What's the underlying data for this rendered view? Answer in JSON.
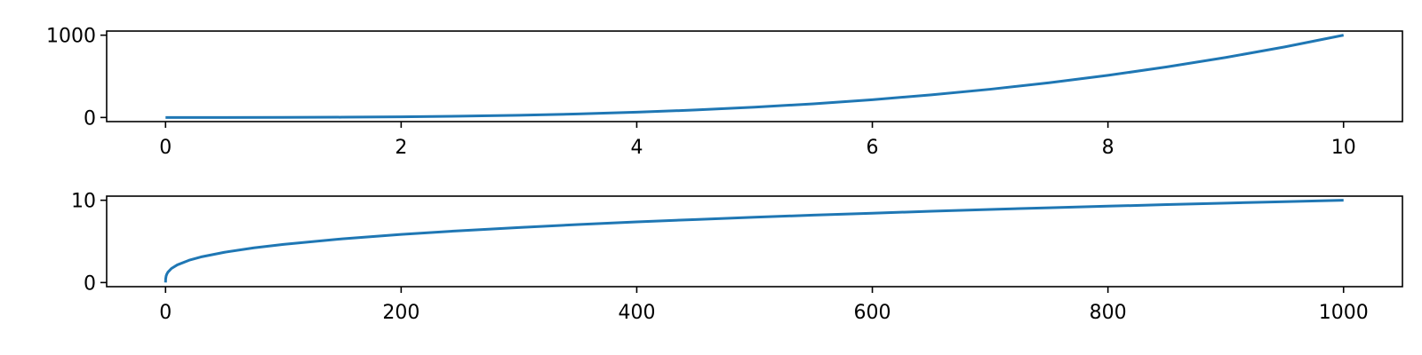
{
  "chart_data": [
    {
      "type": "line",
      "title": "",
      "xlabel": "",
      "ylabel": "",
      "xlim": [
        -0.5,
        10.5
      ],
      "ylim": [
        -50,
        1050
      ],
      "xticks": [
        0,
        2,
        4,
        6,
        8,
        10
      ],
      "yticks": [
        0,
        1000
      ],
      "xtick_labels": [
        "0",
        "2",
        "4",
        "6",
        "8",
        "10"
      ],
      "ytick_labels": [
        "0",
        "1000"
      ],
      "grid": false,
      "series": [
        {
          "color": "#1f77b4",
          "x": [
            0,
            0.5,
            1,
            1.5,
            2,
            2.5,
            3,
            3.5,
            4,
            4.5,
            5,
            5.5,
            6,
            6.5,
            7,
            7.5,
            8,
            8.5,
            9,
            9.5,
            10
          ],
          "y": [
            0,
            0.125,
            1,
            3.375,
            8,
            15.625,
            27,
            42.875,
            64,
            91.125,
            125,
            166.375,
            216,
            274.625,
            343,
            421.875,
            512,
            614.125,
            729,
            857.375,
            1000
          ]
        }
      ]
    },
    {
      "type": "line",
      "title": "",
      "xlabel": "",
      "ylabel": "",
      "xlim": [
        -50,
        1050
      ],
      "ylim": [
        -0.5,
        10.5
      ],
      "xticks": [
        0,
        200,
        400,
        600,
        800,
        1000
      ],
      "yticks": [
        0,
        10
      ],
      "xtick_labels": [
        "0",
        "200",
        "400",
        "600",
        "800",
        "1000"
      ],
      "ytick_labels": [
        "0",
        "10"
      ],
      "grid": false,
      "series": [
        {
          "color": "#1f77b4",
          "x": [
            0,
            0.1,
            0.5,
            1,
            2,
            5,
            10,
            20,
            30,
            50,
            75,
            100,
            150,
            200,
            250,
            300,
            350,
            400,
            450,
            500,
            550,
            600,
            650,
            700,
            750,
            800,
            850,
            900,
            950,
            1000
          ],
          "y": [
            0,
            0.46,
            0.79,
            1,
            1.26,
            1.71,
            2.15,
            2.71,
            3.11,
            3.68,
            4.22,
            4.64,
            5.31,
            5.85,
            6.3,
            6.69,
            7.05,
            7.37,
            7.66,
            7.94,
            8.19,
            8.43,
            8.66,
            8.88,
            9.09,
            9.28,
            9.47,
            9.65,
            9.83,
            10
          ]
        }
      ]
    }
  ]
}
